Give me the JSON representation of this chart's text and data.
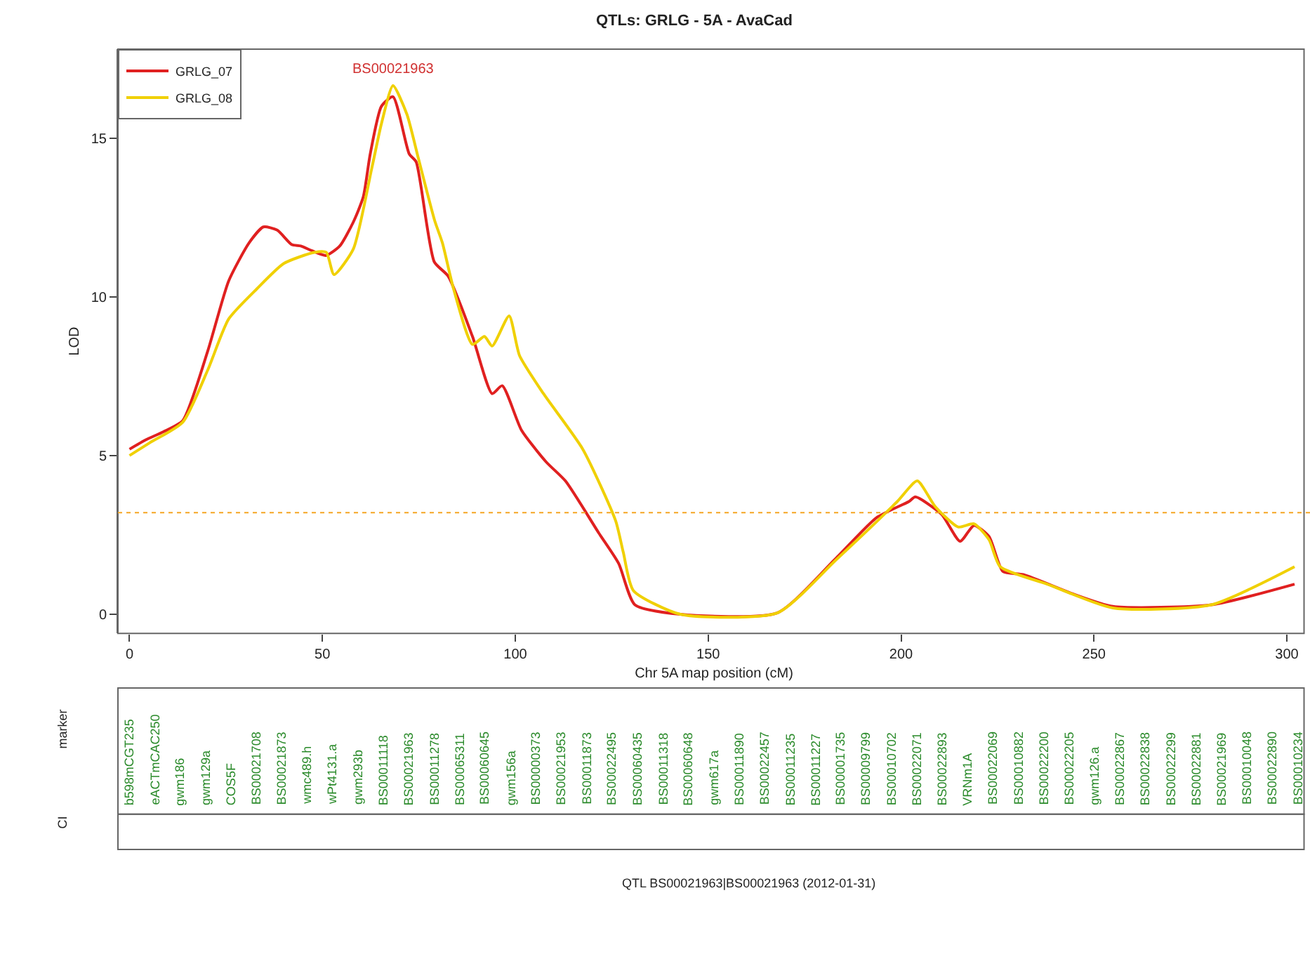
{
  "chart_data": {
    "type": "line",
    "title": "QTLs: GRLG - 5A - AvaCad",
    "xlabel": "Chr 5A map position (cM)",
    "ylabel": "LOD",
    "xlim": [
      -3,
      306
    ],
    "xticks": [
      0,
      50,
      100,
      150,
      200,
      250,
      300
    ],
    "ylim": [
      -0.6,
      17.8
    ],
    "yticks": [
      0,
      5,
      10,
      15
    ],
    "legend": "top left",
    "marker": "none",
    "line_style": "solid",
    "series": [
      {
        "name": "GRLG_07",
        "color": "#e02020",
        "x": [
          0,
          4.3,
          8.8,
          13.8,
          20.3,
          25.7,
          31,
          34.7,
          38.3,
          42,
          44.4,
          47.3,
          50.9,
          54.5,
          58,
          60.6,
          62.4,
          65.3,
          68.3,
          72.5,
          74.3,
          79,
          82.6,
          88.9,
          94,
          96.6,
          101.6,
          108,
          113,
          121.7,
          126.8,
          131,
          142.8,
          168,
          183,
          193.7,
          202,
          203.7,
          210.5,
          215.3,
          218.9,
          222.8,
          226.4,
          231.7,
          244.4,
          254.9,
          280.4,
          302
        ],
        "values": [
          5.2,
          5.5,
          5.75,
          6.1,
          8.3,
          10.5,
          11.7,
          12.2,
          12.1,
          11.65,
          11.6,
          11.45,
          11.3,
          11.6,
          12.35,
          13.15,
          14.5,
          16.0,
          16.3,
          14.5,
          14.25,
          11.1,
          10.65,
          8.75,
          6.95,
          7.2,
          5.8,
          4.8,
          4.2,
          2.55,
          1.6,
          0.3,
          0,
          0.05,
          1.75,
          3.05,
          3.55,
          3.7,
          3.15,
          2.3,
          2.8,
          2.45,
          1.35,
          1.25,
          0.65,
          0.25,
          0.3,
          0.95
        ]
      },
      {
        "name": "GRLG_08",
        "color": "#f0d000",
        "x": [
          0,
          5.2,
          13.8,
          20.3,
          25.7,
          33,
          40,
          47.9,
          51,
          53,
          58,
          62.8,
          65.3,
          68.3,
          71.9,
          74.9,
          79.1,
          81.1,
          84,
          88.9,
          92,
          94,
          98.4,
          101.1,
          107.3,
          117.5,
          126,
          128,
          130.6,
          142.8,
          168,
          183,
          199,
          204.2,
          208.8,
          214.8,
          218.9,
          222.8,
          225.7,
          237.9,
          254.9,
          280.4,
          302
        ],
        "values": [
          5.0,
          5.4,
          6.05,
          7.7,
          9.3,
          10.25,
          11.05,
          11.4,
          11.4,
          10.7,
          11.5,
          14.05,
          15.45,
          16.65,
          15.75,
          14.35,
          12.4,
          11.7,
          10.25,
          8.5,
          8.75,
          8.45,
          9.4,
          8.15,
          6.95,
          5.2,
          2.95,
          1.95,
          0.75,
          0,
          0.05,
          1.7,
          3.55,
          4.2,
          3.4,
          2.75,
          2.85,
          2.35,
          1.5,
          0.95,
          0.2,
          0.3,
          1.5
        ]
      }
    ],
    "ref_lines": [
      {
        "axis": "y",
        "value": 3.2,
        "color": "#f5a623",
        "line_style": "dotted"
      }
    ],
    "annotations": [
      {
        "text": "BS00021963",
        "x": 68.3,
        "y": 16.3
      },
      "b598mCGT235",
      "eACTmCAC250",
      "gwm186",
      "gwm129a",
      "COS5F",
      "BS00021708",
      "BS00021873",
      "wmc489.h",
      "wPt4131.a",
      "gwm293b",
      "BS00011118",
      "BS00021963",
      "BS00011278",
      "BS00065311",
      "BS00060645",
      "gwm156a",
      "BS00000373",
      "BS00021953",
      "BS00011873",
      "BS00022495",
      "BS00060435",
      "BS00011318",
      "BS00060648",
      "gwm617a",
      "BS00011890",
      "BS00022457",
      "BS00011235",
      "BS00011227",
      "BS00001735",
      "BS00009799",
      "BS00010702",
      "BS00022071",
      "BS00022893",
      "VRNm1A",
      "BS00022069",
      "BS00010882",
      "BS00022200",
      "BS00022205",
      "gwm126.a",
      "BS00022867",
      "BS00022838",
      "BS00022299",
      "BS00022881",
      "BS00021969",
      "BS00010048",
      "BS00022890",
      "BS00010234",
      "marker",
      "CI",
      "QTL BS00021963|BS00021963 (2012-01-31)"
    ]
  }
}
